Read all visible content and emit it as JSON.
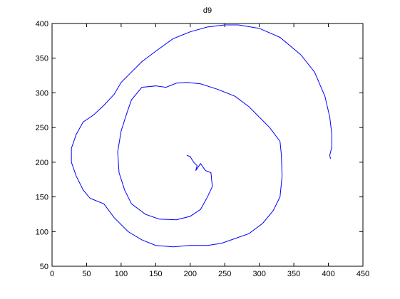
{
  "chart_data": {
    "type": "line",
    "title": "d9",
    "color": "#0000ff",
    "x": [
      195,
      200,
      205,
      210,
      208,
      215,
      222,
      230,
      232,
      225,
      215,
      200,
      180,
      155,
      135,
      115,
      105,
      97,
      95,
      100,
      108,
      115,
      130,
      150,
      165,
      180,
      195,
      215,
      240,
      265,
      285,
      300,
      315,
      330,
      332,
      333,
      330,
      320,
      305,
      285,
      265,
      245,
      225,
      200,
      175,
      150,
      130,
      110,
      90,
      75,
      55,
      45,
      35,
      28,
      28,
      35,
      45,
      60,
      75,
      90,
      100,
      115,
      130,
      150,
      175,
      200,
      225,
      250,
      270,
      300,
      330,
      360,
      380,
      395,
      402,
      405,
      405,
      402,
      403
    ],
    "values": [
      210,
      208,
      200,
      195,
      188,
      198,
      188,
      185,
      165,
      150,
      132,
      122,
      117,
      118,
      125,
      140,
      160,
      185,
      215,
      245,
      270,
      290,
      308,
      310,
      308,
      314,
      315,
      313,
      305,
      295,
      280,
      265,
      250,
      230,
      210,
      180,
      150,
      130,
      112,
      97,
      90,
      83,
      80,
      80,
      78,
      80,
      88,
      100,
      120,
      140,
      148,
      160,
      180,
      200,
      220,
      240,
      258,
      268,
      282,
      298,
      315,
      330,
      345,
      360,
      378,
      388,
      395,
      398,
      398,
      393,
      380,
      355,
      330,
      295,
      265,
      240,
      222,
      210,
      205
    ],
    "xlim": [
      0,
      450
    ],
    "xticks": [
      0,
      50,
      100,
      150,
      200,
      250,
      300,
      350,
      400,
      450
    ],
    "ylim": [
      50,
      400
    ],
    "yticks": [
      50,
      100,
      150,
      200,
      250,
      300,
      350,
      400
    ]
  }
}
